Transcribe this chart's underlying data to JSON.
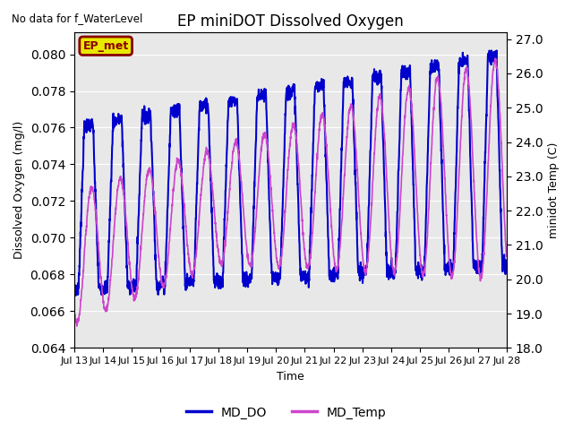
{
  "title": "EP miniDOT Dissolved Oxygen",
  "top_left_text": "No data for f_WaterLevel",
  "xlabel": "Time",
  "ylabel_left": "Dissolved Oxygen (mg/l)",
  "ylabel_right": "minidot Temp (C)",
  "ylim_left": [
    0.064,
    0.0812
  ],
  "ylim_right": [
    18.0,
    27.2
  ],
  "yticks_left": [
    0.064,
    0.066,
    0.068,
    0.07,
    0.072,
    0.074,
    0.076,
    0.078,
    0.08
  ],
  "yticks_right": [
    18.0,
    19.0,
    20.0,
    21.0,
    22.0,
    23.0,
    24.0,
    25.0,
    26.0,
    27.0
  ],
  "xtick_labels": [
    "Jul 13",
    "Jul 14",
    "Jul 15",
    "Jul 16",
    "Jul 17",
    "Jul 18",
    "Jul 19",
    "Jul 20",
    "Jul 21",
    "Jul 22",
    "Jul 23",
    "Jul 24",
    "Jul 25",
    "Jul 26",
    "Jul 27",
    "Jul 28"
  ],
  "line_do_color": "#0000cc",
  "line_temp_color": "#cc44cc",
  "legend_label_do": "MD_DO",
  "legend_label_temp": "MD_Temp",
  "ep_met_box_facecolor": "#e8e800",
  "ep_met_text_color": "#880000",
  "ep_met_label": "EP_met",
  "n_days": 15,
  "plot_bg": "#e8e8e8",
  "fig_bg": "#ffffff",
  "title_fontsize": 12,
  "axis_fontsize": 9,
  "tick_fontsize": 8
}
